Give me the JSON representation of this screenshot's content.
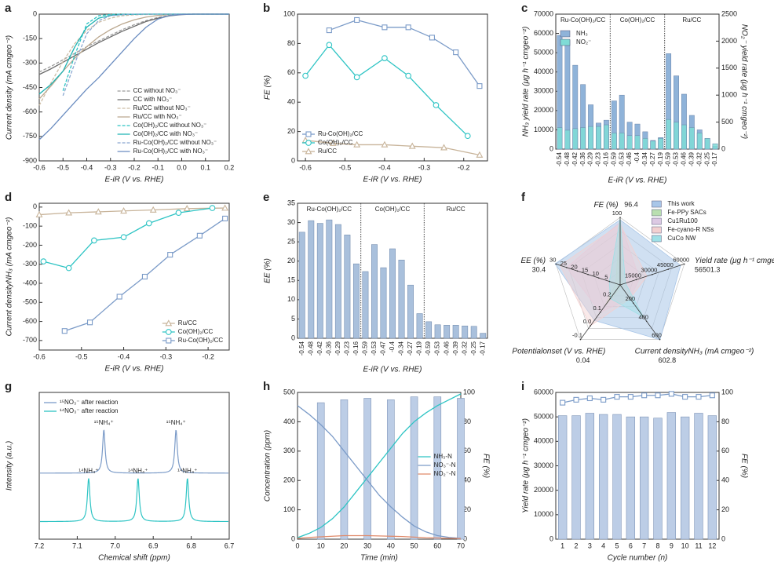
{
  "chart_data": [
    {
      "type": "line",
      "label": "a",
      "xlabel": "E-iR (V vs. RHE)",
      "ylabel": "Current density (mA cmgeo⁻²)",
      "x": [
        -0.6,
        -0.55,
        -0.5,
        -0.45,
        -0.4,
        -0.35,
        -0.3,
        -0.25,
        -0.2,
        -0.15,
        -0.1,
        -0.05,
        0,
        0.05,
        0.1,
        0.15,
        0.2
      ],
      "xlim": [
        -0.6,
        0.2
      ],
      "xticks": [
        -0.6,
        -0.5,
        -0.4,
        -0.3,
        -0.2,
        -0.1,
        {
          "value": 0,
          "label": "0.0"
        },
        0.1,
        0.2
      ],
      "ylim": [
        -900,
        0
      ],
      "yticks": [
        0,
        -150,
        -300,
        -450,
        -600,
        -750,
        -900
      ],
      "legend": "lower right",
      "series": [
        {
          "name": "CC without NO₃⁻",
          "color": "#9a9a9a",
          "dashed": true,
          "values": [
            -355,
            -320,
            -280,
            -240,
            -200,
            -165,
            -130,
            -95,
            -65,
            -40,
            -20,
            -8,
            -2,
            0,
            0,
            0,
            0
          ]
        },
        {
          "name": "CC with NO₃⁻",
          "color": "#6a6a6a",
          "values": [
            -370,
            -335,
            -295,
            -255,
            -215,
            -175,
            -140,
            -105,
            -75,
            -45,
            -25,
            -10,
            -3,
            0,
            0,
            0,
            0
          ]
        },
        {
          "name": "Ru/CC without NO₃⁻",
          "color": "#cdbda6",
          "dashed": true,
          "values": [
            -560,
            -420,
            -290,
            -180,
            -100,
            -50,
            -25,
            -10,
            -4,
            -2,
            0,
            0,
            0,
            0,
            0,
            0,
            0
          ]
        },
        {
          "name": "Ru/CC with NO₃⁻",
          "color": "#bba88f",
          "values": [
            -520,
            -440,
            -350,
            -270,
            -200,
            -140,
            -95,
            -60,
            -35,
            -18,
            -8,
            -3,
            0,
            0,
            0,
            0,
            0
          ]
        },
        {
          "name": "Co(OH)₂/CC without NO₃⁻",
          "color": "#2ec4c4",
          "dashed": true,
          "values": [
            null,
            null,
            -470,
            -250,
            -60,
            -10,
            -2,
            0,
            0,
            0,
            0,
            0,
            0,
            0,
            0,
            0,
            0
          ]
        },
        {
          "name": "Co(OH)₂/CC with NO₃⁻",
          "color": "#1fb3b3",
          "values": [
            -490,
            -430,
            -350,
            -200,
            -80,
            -25,
            -8,
            -3,
            -1,
            0,
            0,
            0,
            0,
            0,
            0,
            0,
            0
          ]
        },
        {
          "name": "Ru-Co(OH)₂/CC without NO₃⁻",
          "color": "#8aa6d0",
          "dashed": true,
          "values": [
            null,
            null,
            -500,
            -300,
            -120,
            -40,
            -10,
            -3,
            0,
            0,
            0,
            0,
            0,
            0,
            0,
            0,
            0
          ]
        },
        {
          "name": "Ru-Co(OH)₂/CC with NO₃⁻",
          "color": "#6a8cc0",
          "values": [
            -770,
            -700,
            -620,
            -540,
            -460,
            -390,
            -310,
            -230,
            -150,
            -80,
            -30,
            -8,
            -2,
            0,
            0,
            0,
            0
          ]
        }
      ]
    },
    {
      "type": "line",
      "label": "b",
      "xlabel": "E-iR (V vs. RHE)",
      "ylabel": "FE (%)",
      "xlim": [
        -0.62,
        -0.14
      ],
      "xticks": [
        -0.6,
        -0.5,
        -0.4,
        -0.3,
        -0.2
      ],
      "ylim": [
        0,
        100
      ],
      "yticks": [
        0,
        20,
        40,
        60,
        80,
        100
      ],
      "legend": "lower left",
      "series": [
        {
          "name": "Ru-Co(OH)₂/CC",
          "color": "#7b9bc8",
          "marker": "square",
          "x": [
            -0.54,
            -0.47,
            -0.4,
            -0.34,
            -0.28,
            -0.22,
            -0.16
          ],
          "values": [
            89,
            96,
            91,
            91,
            84,
            74,
            51
          ]
        },
        {
          "name": "Co(OH)₂/CC",
          "color": "#2ec4c4",
          "marker": "circle",
          "x": [
            -0.6,
            -0.54,
            -0.47,
            -0.4,
            -0.34,
            -0.27,
            -0.19
          ],
          "values": [
            58,
            79,
            57,
            70,
            58,
            38,
            17
          ]
        },
        {
          "name": "Ru/CC",
          "color": "#c8b49a",
          "marker": "triangle",
          "x": [
            -0.6,
            -0.53,
            -0.47,
            -0.4,
            -0.33,
            -0.25,
            -0.16
          ],
          "values": [
            14,
            12,
            11,
            11,
            10,
            9,
            4
          ]
        }
      ]
    },
    {
      "type": "bar",
      "label": "c",
      "xlabel": "E-iR (V vs. RHE)",
      "ylabel": "NH₃ yield rate (μg h⁻¹ cmgeo⁻²)",
      "y2label": "NO₂⁻ yield rate (μg h⁻¹ cmgeo⁻²)",
      "groups": [
        {
          "name": "Ru-Co(OH)₂/CC",
          "categories": [
            "-0.54",
            "-0.48",
            "-0.42",
            "-0.36",
            "-0.29",
            "-0.23",
            "-0.16"
          ]
        },
        {
          "name": "Co(OH)₂/CC",
          "categories": [
            "-0.59",
            "-0.53",
            "-0.46",
            "-0.4",
            "-0.34",
            "-0.27",
            "-0.19"
          ]
        },
        {
          "name": "Ru/CC",
          "categories": [
            "-0.59",
            "-0.53",
            "-0.46",
            "-0.39",
            "-0.32",
            "-0.25",
            "-0.17"
          ]
        }
      ],
      "ylim": [
        0,
        70000
      ],
      "yticks": [
        0,
        10000,
        20000,
        30000,
        40000,
        50000,
        60000,
        70000
      ],
      "y2lim": [
        0,
        2500
      ],
      "y2ticks": [
        0,
        500,
        1000,
        1500,
        2000,
        2500
      ],
      "legend": "upper left",
      "series": [
        {
          "name": "NH₃",
          "color": "#8fb3d9",
          "values": [
            59000,
            56500,
            43500,
            33500,
            23000,
            13500,
            15000,
            25000,
            28000,
            14000,
            13000,
            9000,
            4500,
            6000,
            49500,
            38000,
            28500,
            17500,
            10000,
            5500,
            1500
          ]
        },
        {
          "name": "NO₂⁻",
          "color": "#7fdcd6",
          "axis": "y2",
          "values": [
            400,
            350,
            380,
            400,
            420,
            420,
            450,
            300,
            300,
            250,
            250,
            200,
            150,
            200,
            550,
            500,
            450,
            400,
            300,
            200,
            100
          ]
        }
      ]
    },
    {
      "type": "line",
      "label": "d",
      "xlabel": "E-iR (V vs. RHE)",
      "ylabel": "Current densityNH₃ (mA cmgeo⁻²)",
      "xlim": [
        -0.6,
        -0.15
      ],
      "xticks": [
        -0.6,
        -0.5,
        -0.4,
        -0.3,
        -0.2
      ],
      "ylim": [
        -750,
        20
      ],
      "yticks": [
        0,
        -100,
        -200,
        -300,
        -400,
        -500,
        -600,
        -700
      ],
      "legend": "lower right",
      "series": [
        {
          "name": "Ru/CC",
          "color": "#c8b49a",
          "marker": "triangle",
          "x": [
            -0.6,
            -0.53,
            -0.46,
            -0.4,
            -0.33,
            -0.25,
            -0.16
          ],
          "values": [
            -40,
            -30,
            -25,
            -20,
            -15,
            -8,
            -5
          ]
        },
        {
          "name": "Co(OH)₂/CC",
          "color": "#2ec4c4",
          "marker": "circle",
          "x": [
            -0.59,
            -0.53,
            -0.47,
            -0.4,
            -0.34,
            -0.27,
            -0.19
          ],
          "values": [
            -285,
            -320,
            -175,
            -158,
            -85,
            -30,
            -5
          ]
        },
        {
          "name": "Ru-Co(OH)₂/CC",
          "color": "#7b9bc8",
          "marker": "square",
          "x": [
            -0.54,
            -0.48,
            -0.41,
            -0.35,
            -0.29,
            -0.22,
            -0.16
          ],
          "values": [
            -650,
            -605,
            -470,
            -365,
            -250,
            -150,
            -60
          ]
        }
      ]
    },
    {
      "type": "bar",
      "label": "e",
      "xlabel": "E-iR (V vs. RHE)",
      "ylabel": "EE (%)",
      "groups": [
        {
          "name": "Ru-Co(OH)₂/CC",
          "categories": [
            "-0.54",
            "-0.48",
            "-0.42",
            "-0.36",
            "-0.29",
            "-0.23",
            "-0.16"
          ]
        },
        {
          "name": "Co(OH)₂/CC",
          "categories": [
            "-0.59",
            "-0.53",
            "-0.47",
            "-0.4",
            "-0.34",
            "-0.27",
            "-0.19"
          ]
        },
        {
          "name": "Ru/CC",
          "categories": [
            "-0.59",
            "-0.53",
            "-0.46",
            "-0.39",
            "-0.32",
            "-0.25",
            "-0.17"
          ]
        }
      ],
      "ylim": [
        0,
        35
      ],
      "yticks": [
        0,
        5,
        10,
        15,
        20,
        25,
        30,
        35
      ],
      "color": "#a9c0dc",
      "values": [
        27.5,
        30.5,
        29.8,
        30.7,
        29.5,
        26.8,
        19.3,
        17.3,
        24.3,
        18.3,
        23.2,
        20.3,
        13.8,
        6.4,
        4.3,
        3.5,
        3.4,
        3.4,
        3.2,
        3.1,
        1.3
      ]
    },
    {
      "type": "radar",
      "label": "f",
      "legend": "upper right",
      "axes": [
        {
          "name": "FE (%)",
          "lim": [
            0,
            100
          ],
          "ticks": [
            100
          ]
        },
        {
          "name": "Yield rate (μg h⁻¹ cmgeo⁻²)",
          "lim": [
            0,
            60000
          ],
          "ticks": [
            15000,
            30000,
            45000,
            60000
          ]
        },
        {
          "name": "Current densityNH₃ (mA cmgeo⁻²)",
          "lim": [
            0,
            600
          ],
          "ticks": [
            200,
            400,
            600
          ]
        },
        {
          "name": "Potentialonset (V vs. RHE)",
          "lim": [
            0.3,
            -0.1
          ],
          "ticks": [
            0.2,
            0.1,
            {
              "value": 0,
              "label": "0.0"
            },
            -0.1
          ]
        },
        {
          "name": "EE (%)",
          "lim": [
            0,
            30
          ],
          "ticks": [
            5,
            10,
            15,
            20,
            25,
            30
          ]
        }
      ],
      "series": [
        {
          "name": "This work",
          "color": "#a9c6e8",
          "values": [
            96.4,
            56501.3,
            602.8,
            0.04,
            30.4
          ]
        },
        {
          "name": "Fe-PPy SACs",
          "color": "#b9dfb0",
          "values": [
            100,
            2000,
            20,
            0.15,
            2
          ]
        },
        {
          "name": "Cu1Ru100",
          "color": "#dcc9e3",
          "values": [
            93,
            18000,
            150,
            0.1,
            25
          ]
        },
        {
          "name": "Fe-cyano-R NSs",
          "color": "#f2d0d0",
          "values": [
            90,
            25000,
            150,
            0,
            28
          ]
        },
        {
          "name": "CuCo NW",
          "color": "#9fe0e6",
          "values": [
            98,
            5000,
            350,
            0.2,
            5
          ]
        }
      ]
    },
    {
      "type": "spectrum",
      "label": "g",
      "xlabel": "Chemical shift (ppm)",
      "ylabel": "Intensity (a.u.)",
      "xlim": [
        7.2,
        6.7
      ],
      "xticks": [
        7.2,
        7.1,
        {
          "value": 7,
          "label": "7.0"
        },
        6.9,
        6.8,
        6.7
      ],
      "legend": "upper left",
      "series": [
        {
          "name": "¹⁵NO₃⁻ after reaction",
          "color": "#7b9bc8",
          "peaks": [
            7.03,
            6.84
          ],
          "peak_labels": [
            "¹⁵NH₄⁺",
            "¹⁵NH₄⁺"
          ]
        },
        {
          "name": "¹⁴NO₃⁻ after reaction",
          "color": "#2ec4c4",
          "peaks": [
            7.07,
            6.94,
            6.81
          ],
          "peak_labels": [
            "¹⁴NH₄⁺",
            "¹⁴NH₄⁺",
            "¹⁴NH₄⁺"
          ]
        }
      ]
    },
    {
      "type": "combo",
      "label": "h",
      "xlabel": "Time (min)",
      "ylabel": "Concentration (ppm)",
      "y2label": "FE (%)",
      "xlim": [
        0,
        70
      ],
      "xticks": [
        0,
        10,
        20,
        30,
        40,
        50,
        60,
        70
      ],
      "ylim": [
        0,
        500
      ],
      "yticks": [
        0,
        100,
        200,
        300,
        400,
        500
      ],
      "y2lim": [
        0,
        100
      ],
      "y2ticks": [
        0,
        20,
        40,
        60,
        80,
        100
      ],
      "legend": "center right",
      "bars": {
        "color": "#bccde6",
        "axis": "y2",
        "x": [
          10,
          20,
          30,
          40,
          50,
          60,
          70
        ],
        "values": [
          93,
          95,
          96,
          95,
          97,
          97,
          96
        ]
      },
      "x": [
        0,
        5,
        10,
        15,
        20,
        25,
        30,
        35,
        40,
        45,
        50,
        55,
        60,
        65,
        70
      ],
      "series": [
        {
          "name": "NH₃-N",
          "color": "#2ec4c4",
          "values": [
            5,
            20,
            40,
            70,
            110,
            160,
            210,
            260,
            310,
            360,
            400,
            430,
            455,
            475,
            495
          ]
        },
        {
          "name": "NO₃⁻-N",
          "color": "#7b9bc8",
          "values": [
            455,
            425,
            390,
            350,
            300,
            250,
            200,
            150,
            110,
            75,
            45,
            25,
            12,
            6,
            3
          ]
        },
        {
          "name": "NO₂⁻-N",
          "color": "#e08a6a",
          "values": [
            3,
            6,
            8,
            10,
            12,
            12,
            12,
            11,
            10,
            9,
            7,
            5,
            4,
            3,
            2
          ]
        }
      ]
    },
    {
      "type": "combo",
      "label": "i",
      "xlabel": "Cycle number (n)",
      "ylabel": "Yield rate (μg h⁻¹ cmgeo⁻²)",
      "y2label": "FE (%)",
      "categories": [
        1,
        2,
        3,
        4,
        5,
        6,
        7,
        8,
        9,
        10,
        11,
        12
      ],
      "ylim": [
        0,
        60000
      ],
      "yticks": [
        0,
        10000,
        20000,
        30000,
        40000,
        50000,
        60000
      ],
      "y2lim": [
        0,
        100
      ],
      "y2ticks": [
        0,
        20,
        40,
        60,
        80,
        100
      ],
      "bars": {
        "color": "#bccde6",
        "values": [
          50500,
          50500,
          51500,
          51000,
          51000,
          50000,
          50000,
          49500,
          51800,
          50000,
          51500,
          50500
        ]
      },
      "series": [
        {
          "color": "#7b9bc8",
          "marker": "square",
          "axis": "y2",
          "values": [
            93,
            95,
            96,
            95,
            97,
            97,
            98,
            98,
            99,
            97,
            97,
            98
          ]
        }
      ]
    }
  ]
}
